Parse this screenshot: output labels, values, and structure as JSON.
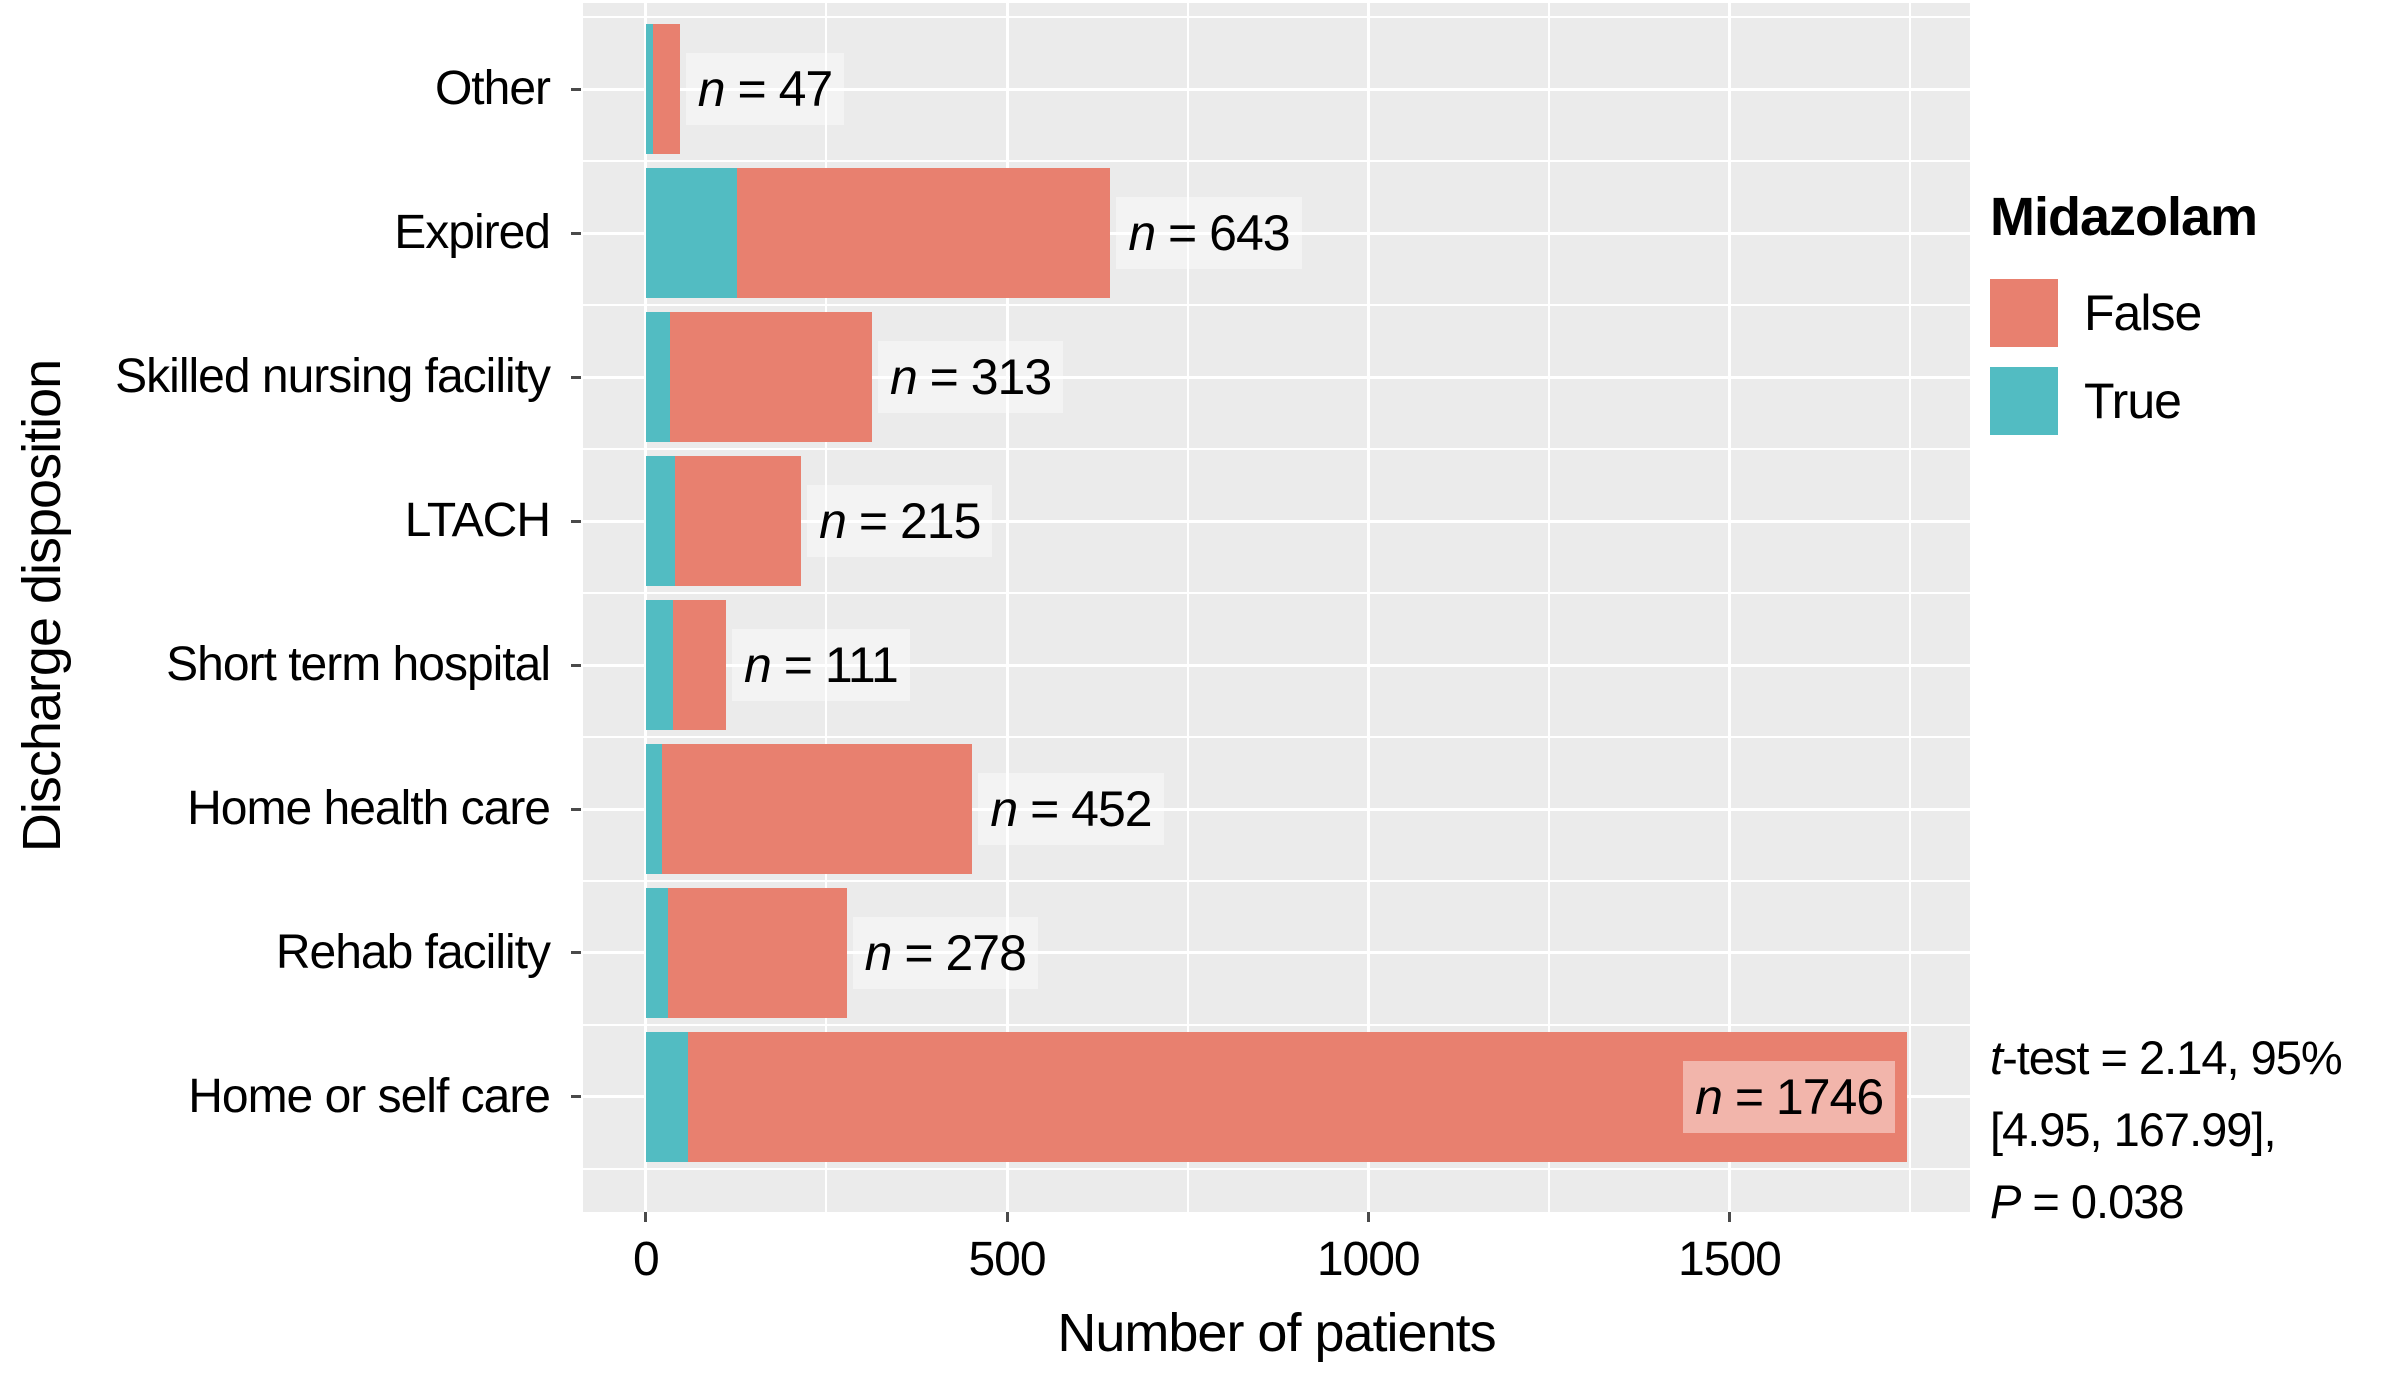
{
  "chart_data": {
    "type": "bar",
    "orientation": "horizontal",
    "stacked": true,
    "xlabel": "Number of patients",
    "ylabel": "Discharge disposition",
    "categories": [
      "Other",
      "Expired",
      "Skilled nursing facility",
      "LTACH",
      "Short term hospital",
      "Home health care",
      "Rehab facility",
      "Home or self care"
    ],
    "totals": [
      47,
      643,
      313,
      215,
      111,
      452,
      278,
      1746
    ],
    "series": [
      {
        "name": "True",
        "color": "#52BCC2",
        "values": [
          10,
          126,
          33,
          41,
          38,
          22,
          31,
          58
        ]
      },
      {
        "name": "False",
        "color": "#E8806F",
        "values": [
          37,
          517,
          280,
          174,
          73,
          430,
          247,
          1688
        ]
      }
    ],
    "bar_labels": [
      "n = 47",
      "n = 643",
      "n = 313",
      "n = 215",
      "n = 111",
      "n = 452",
      "n = 278",
      "n = 1746"
    ],
    "bar_label_italic_prefix": "n",
    "x_axis": {
      "ticks": [
        0,
        500,
        1000,
        1500
      ],
      "tick_labels": [
        "0",
        "500",
        "1000",
        "1500"
      ],
      "minor_ticks": [
        250,
        750,
        1250,
        1750
      ],
      "range": [
        -87,
        1833
      ]
    },
    "grid": true,
    "legend": {
      "title": "Midazolam",
      "position": "right",
      "entries": [
        {
          "label": "False",
          "color": "#E8806F"
        },
        {
          "label": "True",
          "color": "#52BCC2"
        }
      ]
    },
    "annotation_lines": [
      "t-test = 2.14, 95%",
      "[4.95, 167.99],",
      "P = 0.038"
    ]
  },
  "stats_annotation": {
    "t_italic": "t",
    "line1_rest": "-test = 2.14, 95%",
    "line2": "[4.95, 167.99],",
    "p_italic": "P",
    "line3_rest": " = 0.038"
  },
  "colors": {
    "false_fill": "#E8806F",
    "true_fill": "#52BCC2",
    "panel_background": "#EBEBEB",
    "gridline": "#FFFFFF",
    "tick_mark": "#4a4a4a",
    "text": "#000000"
  }
}
